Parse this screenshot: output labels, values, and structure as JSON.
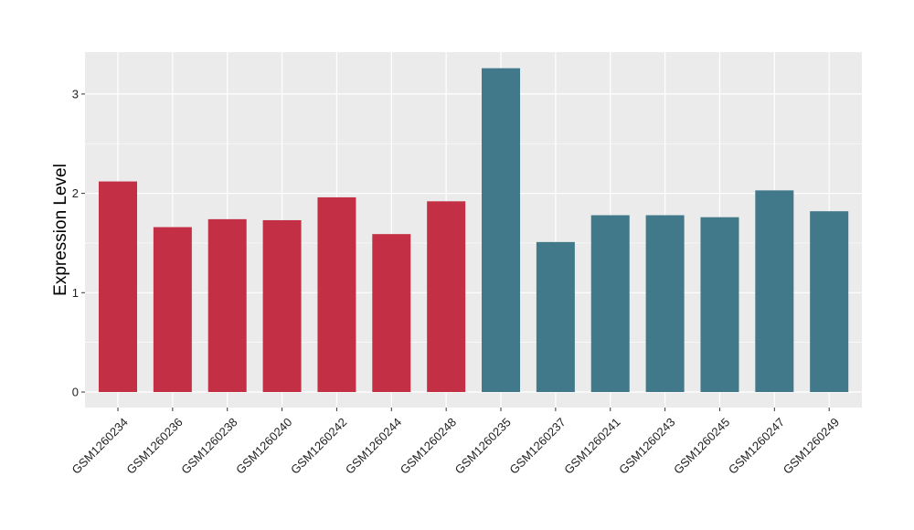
{
  "chart_data": {
    "type": "bar",
    "title": "",
    "xlabel": "",
    "ylabel": "Expression Level",
    "ylim": [
      0,
      3.4
    ],
    "yticks": [
      0,
      1,
      2,
      3
    ],
    "yticks_labels": [
      "0",
      "1",
      "2",
      "3"
    ],
    "grid": true,
    "legend": "none",
    "background_color": "#ebebeb",
    "categories": [
      "GSM1260234",
      "GSM1260236",
      "GSM1260238",
      "GSM1260240",
      "GSM1260242",
      "GSM1260244",
      "GSM1260248",
      "GSM1260235",
      "GSM1260237",
      "GSM1260241",
      "GSM1260243",
      "GSM1260245",
      "GSM1260247",
      "GSM1260249"
    ],
    "values": [
      2.12,
      1.66,
      1.74,
      1.73,
      1.96,
      1.59,
      1.92,
      3.26,
      1.51,
      1.78,
      1.78,
      1.76,
      2.03,
      1.82
    ],
    "bar_colors": [
      "#c33046",
      "#c33046",
      "#c33046",
      "#c33046",
      "#c33046",
      "#c33046",
      "#c33046",
      "#41798a",
      "#41798a",
      "#41798a",
      "#41798a",
      "#41798a",
      "#41798a",
      "#41798a"
    ]
  }
}
